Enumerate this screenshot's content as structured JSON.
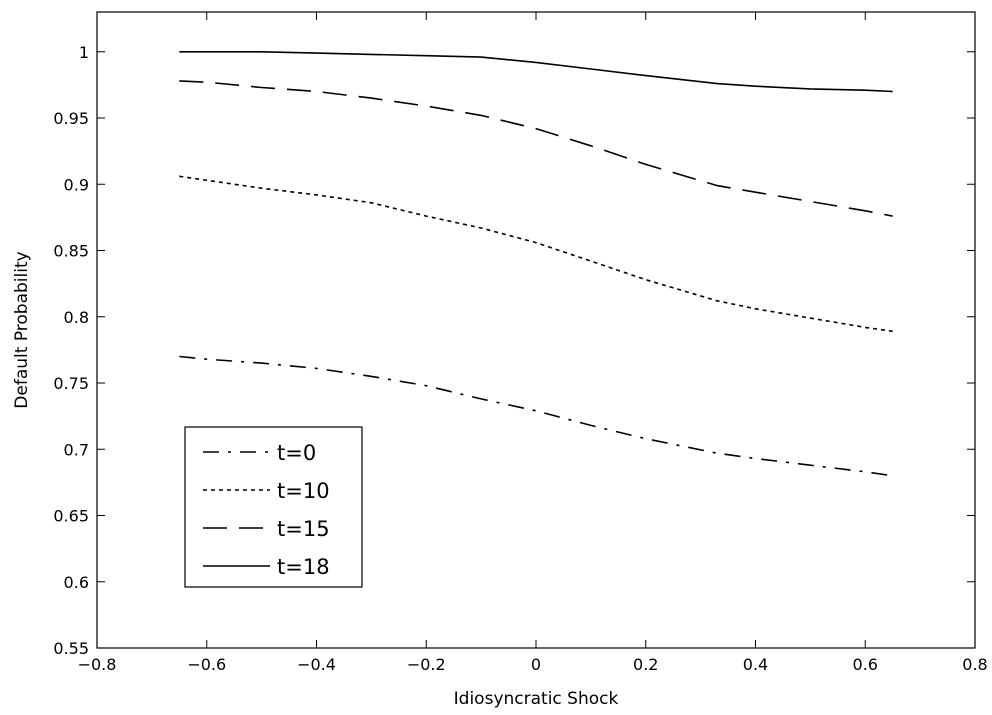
{
  "chart_data": {
    "type": "line",
    "title": "",
    "xlabel": "Idiosyncratic Shock",
    "ylabel": "Default Probability",
    "xlim": [
      -0.8,
      0.8
    ],
    "ylim": [
      0.55,
      1.03
    ],
    "grid": false,
    "legend_position": "bottom-left",
    "x_ticks": [
      -0.8,
      -0.6,
      -0.4,
      -0.2,
      0,
      0.2,
      0.4,
      0.6,
      0.8
    ],
    "x_tick_labels": [
      "−0.8",
      "−0.6",
      "−0.4",
      "−0.2",
      "0",
      "0.2",
      "0.4",
      "0.6",
      "0.8"
    ],
    "y_ticks": [
      0.55,
      0.6,
      0.65,
      0.7,
      0.75,
      0.8,
      0.85,
      0.9,
      0.95,
      1
    ],
    "y_tick_labels": [
      "0.55",
      "0.6",
      "0.65",
      "0.7",
      "0.75",
      "0.8",
      "0.85",
      "0.9",
      "0.95",
      "1"
    ],
    "series": [
      {
        "name": "t=0",
        "style": "dashdot",
        "color": "#000000",
        "x": [
          -0.65,
          -0.6,
          -0.5,
          -0.4,
          -0.3,
          -0.2,
          -0.1,
          0,
          0.1,
          0.2,
          0.33,
          0.4,
          0.5,
          0.6,
          0.65
        ],
        "y": [
          0.77,
          0.768,
          0.765,
          0.761,
          0.755,
          0.748,
          0.738,
          0.729,
          0.718,
          0.708,
          0.697,
          0.693,
          0.688,
          0.683,
          0.68
        ]
      },
      {
        "name": "t=10",
        "style": "dotted",
        "color": "#000000",
        "x": [
          -0.65,
          -0.6,
          -0.5,
          -0.4,
          -0.3,
          -0.2,
          -0.1,
          0,
          0.1,
          0.2,
          0.33,
          0.4,
          0.5,
          0.6,
          0.65
        ],
        "y": [
          0.906,
          0.903,
          0.897,
          0.892,
          0.886,
          0.876,
          0.867,
          0.856,
          0.842,
          0.828,
          0.812,
          0.806,
          0.799,
          0.792,
          0.789
        ]
      },
      {
        "name": "t=15",
        "style": "dashed",
        "color": "#000000",
        "x": [
          -0.65,
          -0.6,
          -0.5,
          -0.4,
          -0.3,
          -0.2,
          -0.1,
          0,
          0.1,
          0.2,
          0.33,
          0.4,
          0.5,
          0.6,
          0.65
        ],
        "y": [
          0.978,
          0.977,
          0.973,
          0.97,
          0.965,
          0.959,
          0.952,
          0.942,
          0.929,
          0.915,
          0.899,
          0.894,
          0.887,
          0.88,
          0.876
        ]
      },
      {
        "name": "t=18",
        "style": "solid",
        "color": "#000000",
        "x": [
          -0.65,
          -0.6,
          -0.5,
          -0.4,
          -0.3,
          -0.2,
          -0.1,
          0,
          0.1,
          0.2,
          0.33,
          0.4,
          0.5,
          0.6,
          0.65
        ],
        "y": [
          1.0,
          1.0,
          1.0,
          0.999,
          0.998,
          0.997,
          0.996,
          0.992,
          0.987,
          0.982,
          0.976,
          0.974,
          0.972,
          0.971,
          0.97
        ]
      }
    ]
  }
}
